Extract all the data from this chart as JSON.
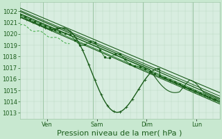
{
  "bg_color": "#c8e8d0",
  "plot_bg_color": "#d8ede0",
  "grid_major_color": "#a0c8a8",
  "grid_minor_color": "#b8d8c0",
  "line_dark": "#1a5c1a",
  "line_mid": "#2e7d32",
  "line_light": "#4caf50",
  "xlabel": "Pression niveau de la mer( hPa )",
  "yticks": [
    1013,
    1014,
    1015,
    1016,
    1017,
    1018,
    1019,
    1020,
    1021,
    1022
  ],
  "ylim": [
    1012.5,
    1022.8
  ],
  "xlim": [
    0.0,
    1.0
  ],
  "xtick_positions": [
    0.135,
    0.385,
    0.635,
    0.885
  ],
  "xtick_labels": [
    "Ven",
    "Sam",
    "Dim",
    "Lun"
  ],
  "vline_positions": [
    0.115,
    0.365,
    0.615,
    0.865
  ],
  "tick_fontsize": 6,
  "xlabel_fontsize": 8
}
